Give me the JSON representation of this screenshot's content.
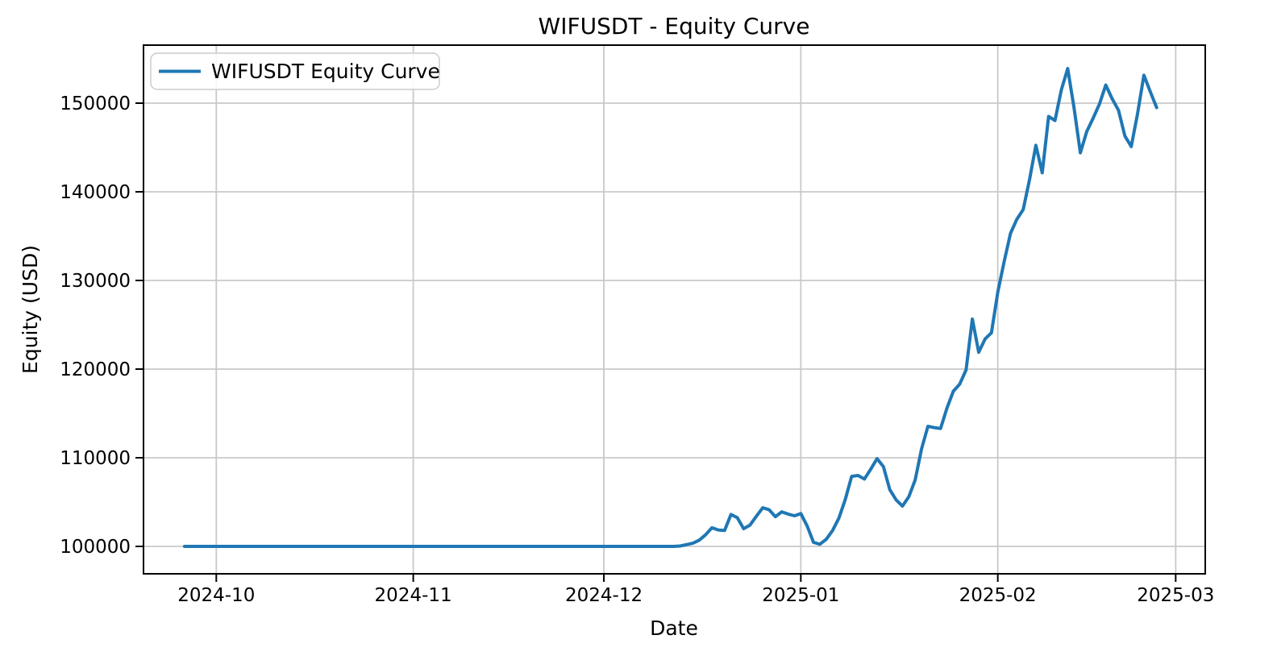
{
  "chart_data": {
    "type": "line",
    "title": "WIFUSDT - Equity Curve",
    "x_axis": {
      "label": "Date",
      "ticks": [
        {
          "date": "2024-10-01",
          "label": "2024-10"
        },
        {
          "date": "2024-11-01",
          "label": "2024-11"
        },
        {
          "date": "2024-12-01",
          "label": "2024-12"
        },
        {
          "date": "2025-01-01",
          "label": "2025-01"
        },
        {
          "date": "2025-02-01",
          "label": "2025-02"
        },
        {
          "date": "2025-03-01",
          "label": "2025-03"
        }
      ],
      "xlim": [
        "2024-09-19",
        "2025-03-06"
      ]
    },
    "y_axis": {
      "label": "Equity (USD)",
      "ticks": [
        100000,
        110000,
        120000,
        130000,
        140000,
        150000
      ],
      "ylim": [
        96900,
        156550
      ]
    },
    "grid": true,
    "legend": {
      "position": "upper-left",
      "frame": true
    },
    "colors": {
      "line": "#1f77b4",
      "grid": "#c9c9c9",
      "spine": "#000000",
      "legend_border": "#cccccc",
      "background": "#ffffff"
    },
    "series": [
      {
        "name": "WIFUSDT Equity Curve",
        "points": [
          [
            "2024-09-26",
            100000
          ],
          [
            "2024-10-10",
            100000
          ],
          [
            "2024-10-25",
            100000
          ],
          [
            "2024-11-10",
            100000
          ],
          [
            "2024-11-25",
            100000
          ],
          [
            "2024-12-08",
            100000
          ],
          [
            "2024-12-12",
            100000
          ],
          [
            "2024-12-13",
            100050
          ],
          [
            "2024-12-14",
            100200
          ],
          [
            "2024-12-15",
            100350
          ],
          [
            "2024-12-16",
            100700
          ],
          [
            "2024-12-17",
            101300
          ],
          [
            "2024-12-18",
            102100
          ],
          [
            "2024-12-19",
            101850
          ],
          [
            "2024-12-20",
            101800
          ],
          [
            "2024-12-21",
            103600
          ],
          [
            "2024-12-22",
            103250
          ],
          [
            "2024-12-23",
            102000
          ],
          [
            "2024-12-24",
            102400
          ],
          [
            "2024-12-25",
            103400
          ],
          [
            "2024-12-26",
            104350
          ],
          [
            "2024-12-27",
            104150
          ],
          [
            "2024-12-28",
            103350
          ],
          [
            "2024-12-29",
            103900
          ],
          [
            "2024-12-30",
            103650
          ],
          [
            "2024-12-31",
            103450
          ],
          [
            "2025-01-01",
            103700
          ],
          [
            "2025-01-02",
            102300
          ],
          [
            "2025-01-03",
            100450
          ],
          [
            "2025-01-04",
            100250
          ],
          [
            "2025-01-05",
            100800
          ],
          [
            "2025-01-06",
            101800
          ],
          [
            "2025-01-07",
            103200
          ],
          [
            "2025-01-08",
            105300
          ],
          [
            "2025-01-09",
            107900
          ],
          [
            "2025-01-10",
            108000
          ],
          [
            "2025-01-11",
            107600
          ],
          [
            "2025-01-12",
            108700
          ],
          [
            "2025-01-13",
            109900
          ],
          [
            "2025-01-14",
            109000
          ],
          [
            "2025-01-15",
            106400
          ],
          [
            "2025-01-16",
            105250
          ],
          [
            "2025-01-17",
            104550
          ],
          [
            "2025-01-18",
            105600
          ],
          [
            "2025-01-19",
            107500
          ],
          [
            "2025-01-20",
            111000
          ],
          [
            "2025-01-21",
            113550
          ],
          [
            "2025-01-22",
            113400
          ],
          [
            "2025-01-23",
            113300
          ],
          [
            "2025-01-24",
            115600
          ],
          [
            "2025-01-25",
            117500
          ],
          [
            "2025-01-26",
            118300
          ],
          [
            "2025-01-27",
            119900
          ],
          [
            "2025-01-28",
            125650
          ],
          [
            "2025-01-29",
            121900
          ],
          [
            "2025-01-30",
            123400
          ],
          [
            "2025-01-31",
            124100
          ],
          [
            "2025-02-01",
            128700
          ],
          [
            "2025-02-02",
            132100
          ],
          [
            "2025-02-03",
            135300
          ],
          [
            "2025-02-04",
            136900
          ],
          [
            "2025-02-05",
            138000
          ],
          [
            "2025-02-06",
            141400
          ],
          [
            "2025-02-07",
            145250
          ],
          [
            "2025-02-08",
            142150
          ],
          [
            "2025-02-09",
            148500
          ],
          [
            "2025-02-10",
            148050
          ],
          [
            "2025-02-11",
            151500
          ],
          [
            "2025-02-12",
            153900
          ],
          [
            "2025-02-13",
            149500
          ],
          [
            "2025-02-14",
            144400
          ],
          [
            "2025-02-15",
            146800
          ],
          [
            "2025-02-16",
            148300
          ],
          [
            "2025-02-17",
            149900
          ],
          [
            "2025-02-18",
            152050
          ],
          [
            "2025-02-19",
            150500
          ],
          [
            "2025-02-20",
            149200
          ],
          [
            "2025-02-21",
            146300
          ],
          [
            "2025-02-22",
            145100
          ],
          [
            "2025-02-23",
            148800
          ],
          [
            "2025-02-24",
            153150
          ],
          [
            "2025-02-25",
            151300
          ],
          [
            "2025-02-26",
            149500
          ]
        ]
      }
    ]
  }
}
